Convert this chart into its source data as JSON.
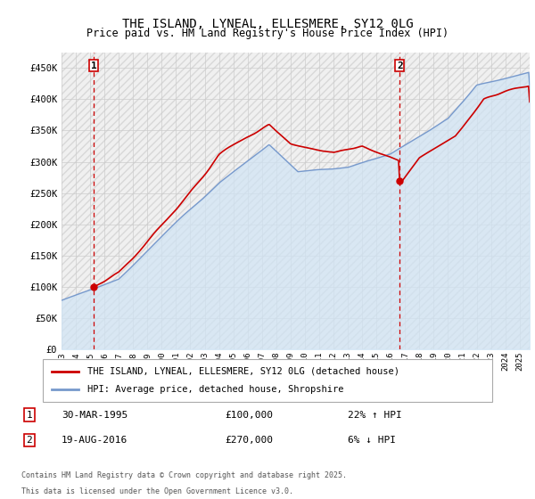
{
  "title": "THE ISLAND, LYNEAL, ELLESMERE, SY12 0LG",
  "subtitle": "Price paid vs. HM Land Registry's House Price Index (HPI)",
  "ylim": [
    0,
    475000
  ],
  "yticks": [
    0,
    50000,
    100000,
    150000,
    200000,
    250000,
    300000,
    350000,
    400000,
    450000
  ],
  "ytick_labels": [
    "£0",
    "£50K",
    "£100K",
    "£150K",
    "£200K",
    "£250K",
    "£300K",
    "£350K",
    "£400K",
    "£450K"
  ],
  "xlim_start": 1993.0,
  "xlim_end": 2025.7,
  "xticks": [
    1993,
    1994,
    1995,
    1996,
    1997,
    1998,
    1999,
    2000,
    2001,
    2002,
    2003,
    2004,
    2005,
    2006,
    2007,
    2008,
    2009,
    2010,
    2011,
    2012,
    2013,
    2014,
    2015,
    2016,
    2017,
    2018,
    2019,
    2020,
    2021,
    2022,
    2023,
    2024,
    2025
  ],
  "property_color": "#cc0000",
  "hpi_color": "#7799cc",
  "hpi_fill_color": "#d0e4f5",
  "marker1_date": 1995.24,
  "marker1_value": 100000,
  "marker2_date": 2016.63,
  "marker2_value": 270000,
  "legend_line1": "THE ISLAND, LYNEAL, ELLESMERE, SY12 0LG (detached house)",
  "legend_line2": "HPI: Average price, detached house, Shropshire",
  "footnote1": "Contains HM Land Registry data © Crown copyright and database right 2025.",
  "footnote2": "This data is licensed under the Open Government Licence v3.0.",
  "background_color": "#ffffff",
  "grid_color": "#cccccc",
  "hatch_color": "#e8e8e8"
}
